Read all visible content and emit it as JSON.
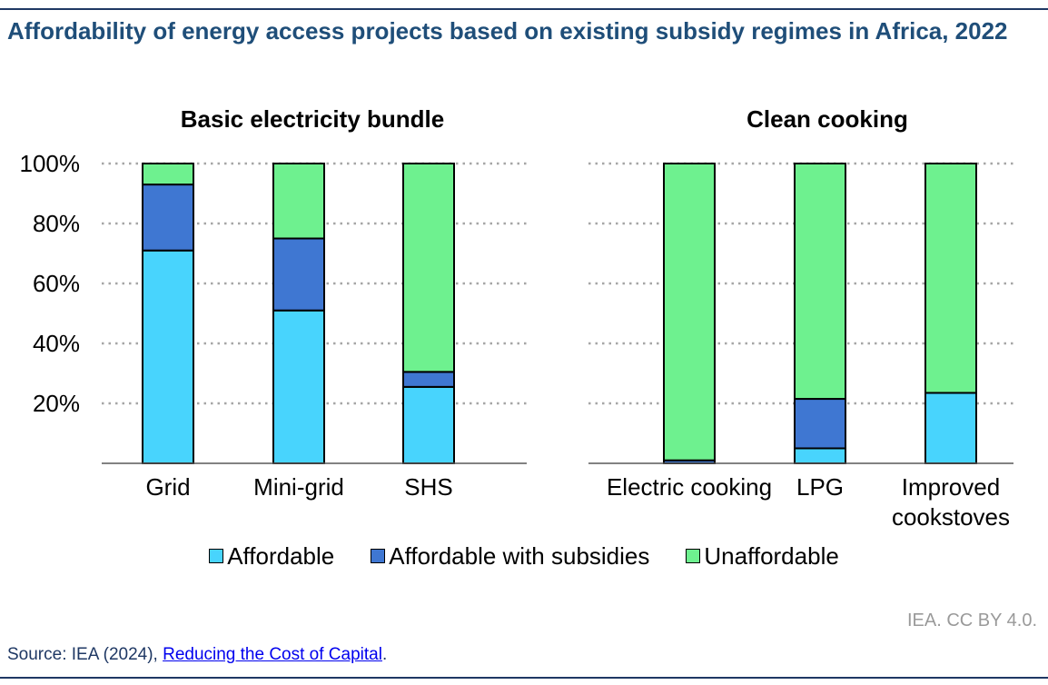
{
  "title": "Affordability of energy access projects based on existing subsidy regimes in Africa, 2022",
  "credit": "IEA. CC BY 4.0.",
  "source": {
    "prefix": "Source: IEA (2024), ",
    "link_text": "Reducing the Cost of Capital",
    "suffix": "."
  },
  "colors": {
    "affordable": "#48d4fd",
    "with_subsidies": "#3f77d2",
    "unaffordable": "#6ef18f",
    "grid": "#a6a6a6"
  },
  "chart_data": [
    {
      "type": "bar",
      "stacked": true,
      "title": "Basic electricity bundle",
      "categories": [
        "Grid",
        "Mini-grid",
        "SHS"
      ],
      "series": [
        {
          "name": "Affordable",
          "values": [
            71,
            51,
            25.5
          ]
        },
        {
          "name": "Affordable with subsidies",
          "values": [
            22,
            24,
            5
          ]
        },
        {
          "name": "Unaffordable",
          "values": [
            7,
            25,
            69.5
          ]
        }
      ],
      "ylim": [
        0,
        100
      ],
      "yticks": [
        "20%",
        "40%",
        "60%",
        "80%",
        "100%"
      ],
      "xlabel": "",
      "ylabel": ""
    },
    {
      "type": "bar",
      "stacked": true,
      "title": "Clean cooking",
      "categories": [
        "Electric cooking",
        "LPG",
        "Improved cookstoves"
      ],
      "series": [
        {
          "name": "Affordable",
          "values": [
            0,
            5,
            23.5
          ]
        },
        {
          "name": "Affordable with subsidies",
          "values": [
            1,
            16.5,
            0
          ]
        },
        {
          "name": "Unaffordable",
          "values": [
            99,
            78.5,
            76.5
          ]
        }
      ],
      "ylim": [
        0,
        100
      ],
      "xlabel": "",
      "ylabel": ""
    }
  ],
  "legend": [
    "Affordable",
    "Affordable with subsidies",
    "Unaffordable"
  ]
}
